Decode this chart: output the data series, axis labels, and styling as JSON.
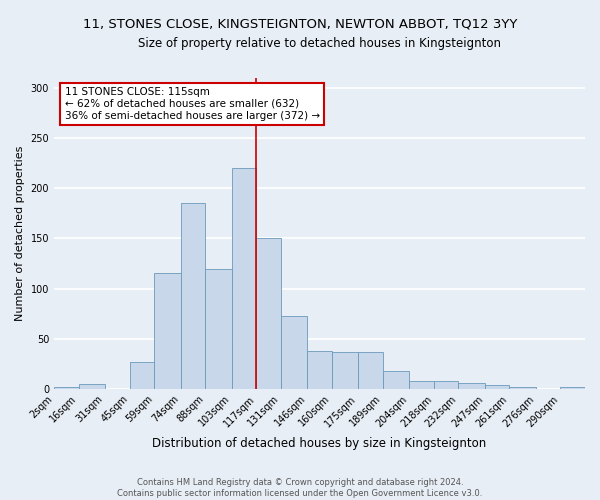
{
  "title": "11, STONES CLOSE, KINGSTEIGNTON, NEWTON ABBOT, TQ12 3YY",
  "subtitle": "Size of property relative to detached houses in Kingsteignton",
  "xlabel": "Distribution of detached houses by size in Kingsteignton",
  "ylabel": "Number of detached properties",
  "footer_line1": "Contains HM Land Registry data © Crown copyright and database right 2024.",
  "footer_line2": "Contains public sector information licensed under the Open Government Licence v3.0.",
  "annotation_line1": "11 STONES CLOSE: 115sqm",
  "annotation_line2": "← 62% of detached houses are smaller (632)",
  "annotation_line3": "36% of semi-detached houses are larger (372) →",
  "vline_x": 117,
  "bar_color": "#c8d8ea",
  "bar_edge_color": "#6a9aba",
  "vline_color": "#cc0000",
  "categories": [
    "2sqm",
    "16sqm",
    "31sqm",
    "45sqm",
    "59sqm",
    "74sqm",
    "88sqm",
    "103sqm",
    "117sqm",
    "131sqm",
    "146sqm",
    "160sqm",
    "175sqm",
    "189sqm",
    "204sqm",
    "218sqm",
    "232sqm",
    "247sqm",
    "261sqm",
    "276sqm",
    "290sqm"
  ],
  "bin_edges": [
    2,
    16,
    31,
    45,
    59,
    74,
    88,
    103,
    117,
    131,
    146,
    160,
    175,
    189,
    204,
    218,
    232,
    247,
    261,
    276,
    290,
    304
  ],
  "bar_heights": [
    2,
    5,
    0,
    27,
    116,
    185,
    120,
    220,
    150,
    73,
    38,
    37,
    37,
    18,
    8,
    8,
    6,
    4,
    2,
    0,
    2
  ],
  "ylim": [
    0,
    310
  ],
  "yticks": [
    0,
    50,
    100,
    150,
    200,
    250,
    300
  ],
  "background_color": "#e8eef5",
  "plot_background_color": "#e8eef5",
  "grid_color": "#ffffff",
  "title_fontsize": 9.5,
  "subtitle_fontsize": 8.5,
  "xlabel_fontsize": 8.5,
  "ylabel_fontsize": 8,
  "tick_fontsize": 7,
  "annotation_fontsize": 7.5,
  "footer_fontsize": 6,
  "annotation_box_edge": "#cc0000"
}
